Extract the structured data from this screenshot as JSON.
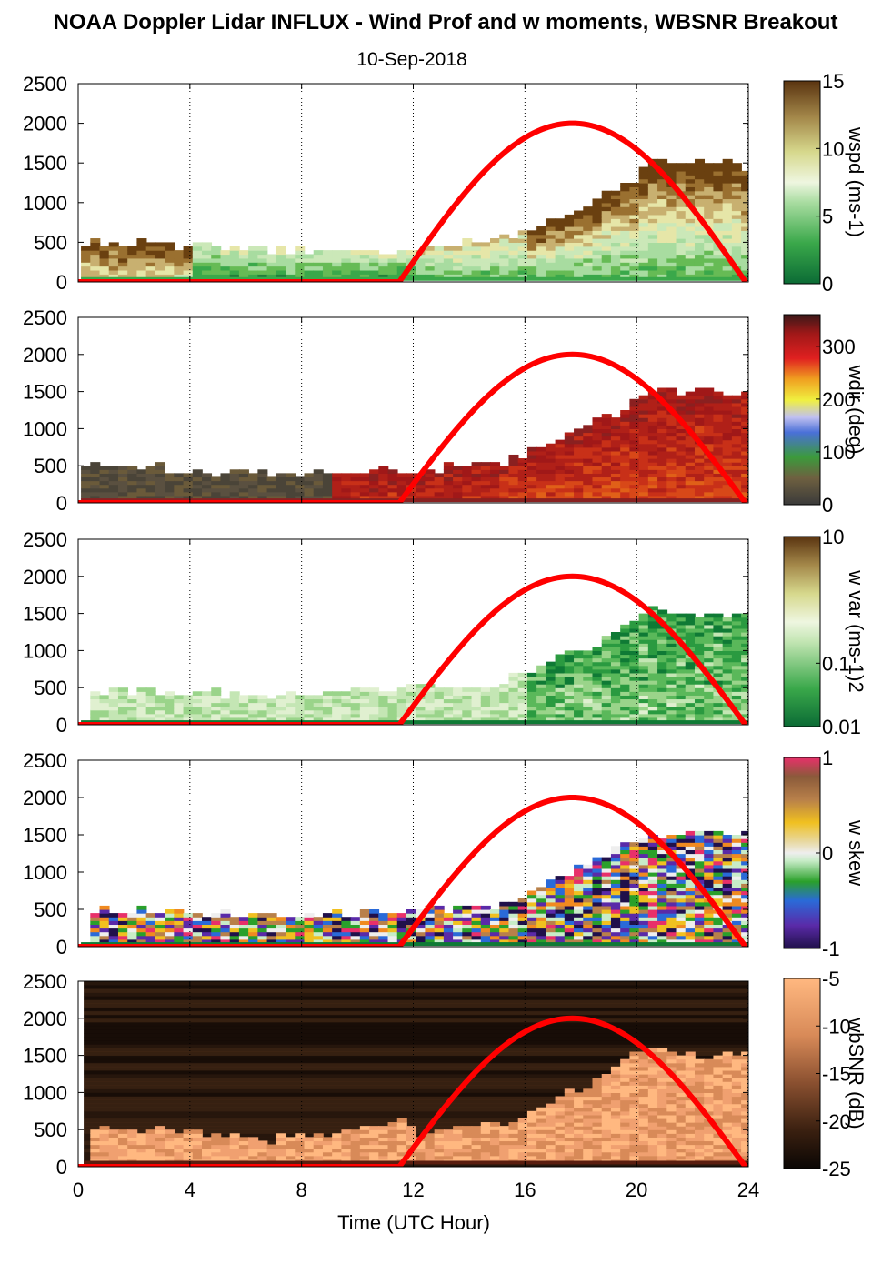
{
  "title": "NOAA Doppler Lidar INFLUX - Wind Prof and w moments, WBSNR Breakout",
  "subtitle": "10-Sep-2018",
  "xlabel": "Time (UTC Hour)",
  "chart_data": [
    {
      "type": "heatmap",
      "colorbar_label": "wspd (ms-1)",
      "colorbar_ticks": [
        "15",
        "10",
        "5",
        "0"
      ],
      "colorbar_range": [
        0,
        15
      ],
      "xlim": [
        0,
        24
      ],
      "ylim": [
        0,
        2500
      ],
      "x_ticks": [
        0,
        4,
        8,
        12,
        16,
        20,
        24
      ],
      "y_ticks": [
        0,
        500,
        1000,
        1500,
        2000,
        2500
      ],
      "top_profile": [
        [
          0,
          480
        ],
        [
          2,
          460
        ],
        [
          4,
          420
        ],
        [
          6,
          380
        ],
        [
          8,
          360
        ],
        [
          10,
          400
        ],
        [
          11.5,
          380
        ],
        [
          13,
          450
        ],
        [
          15,
          520
        ],
        [
          16,
          650
        ],
        [
          18,
          950
        ],
        [
          19.5,
          1200
        ],
        [
          20.5,
          1500
        ],
        [
          22,
          1500
        ],
        [
          23.7,
          1450
        ]
      ],
      "overlay": {
        "color": "#ff0000",
        "start_hour": 11.5,
        "peak_hour": 17.7,
        "end_hour": 23.9,
        "peak_height": 2000
      }
    },
    {
      "type": "heatmap",
      "colorbar_label": "wdir (deg)",
      "colorbar_ticks": [
        "300",
        "200",
        "100",
        "0"
      ],
      "colorbar_range": [
        0,
        360
      ],
      "xlim": [
        0,
        24
      ],
      "ylim": [
        0,
        2500
      ],
      "x_ticks": [
        0,
        4,
        8,
        12,
        16,
        20,
        24
      ],
      "y_ticks": [
        0,
        500,
        1000,
        1500,
        2000,
        2500
      ],
      "top_profile": [
        [
          0,
          500
        ],
        [
          2,
          480
        ],
        [
          4,
          420
        ],
        [
          6,
          380
        ],
        [
          8,
          360
        ],
        [
          10,
          440
        ],
        [
          11.5,
          400
        ],
        [
          13,
          450
        ],
        [
          15,
          520
        ],
        [
          16,
          650
        ],
        [
          18,
          1000
        ],
        [
          19.5,
          1250
        ],
        [
          20.5,
          1500
        ],
        [
          22,
          1480
        ],
        [
          23.7,
          1450
        ]
      ],
      "overlay": {
        "color": "#ff0000",
        "start_hour": 11.5,
        "peak_hour": 17.7,
        "end_hour": 23.9,
        "peak_height": 2000
      }
    },
    {
      "type": "heatmap",
      "colorbar_label": "w var (ms-1)2",
      "colorbar_ticks": [
        "10",
        "0.1",
        "0.01"
      ],
      "colorbar_range": [
        0.01,
        10
      ],
      "colorbar_scale": "log",
      "xlim": [
        0,
        24
      ],
      "ylim": [
        0,
        2500
      ],
      "x_ticks": [
        0,
        4,
        8,
        12,
        16,
        20,
        24
      ],
      "y_ticks": [
        0,
        500,
        1000,
        1500,
        2000,
        2500
      ],
      "top_profile": [
        [
          0.3,
          430
        ],
        [
          2,
          440
        ],
        [
          4,
          400
        ],
        [
          6,
          380
        ],
        [
          8,
          380
        ],
        [
          10,
          450
        ],
        [
          11.5,
          460
        ],
        [
          13,
          480
        ],
        [
          15,
          520
        ],
        [
          16,
          700
        ],
        [
          18,
          1000
        ],
        [
          19.5,
          1300
        ],
        [
          20.5,
          1550
        ],
        [
          22,
          1450
        ],
        [
          24,
          1450
        ]
      ],
      "overlay": {
        "color": "#ff0000",
        "start_hour": 11.5,
        "peak_hour": 17.7,
        "end_hour": 23.9,
        "peak_height": 2000
      }
    },
    {
      "type": "heatmap",
      "colorbar_label": "w skew",
      "colorbar_ticks": [
        "1",
        "0",
        "-1"
      ],
      "colorbar_range": [
        -1,
        1
      ],
      "xlim": [
        0,
        24
      ],
      "ylim": [
        0,
        2500
      ],
      "x_ticks": [
        0,
        4,
        8,
        12,
        16,
        20,
        24
      ],
      "y_ticks": [
        0,
        500,
        1000,
        1500,
        2000,
        2500
      ],
      "top_profile": [
        [
          0.3,
          430
        ],
        [
          2,
          480
        ],
        [
          4,
          420
        ],
        [
          6,
          400
        ],
        [
          8,
          400
        ],
        [
          10,
          440
        ],
        [
          11.5,
          460
        ],
        [
          13,
          480
        ],
        [
          15,
          520
        ],
        [
          16,
          700
        ],
        [
          18,
          1100
        ],
        [
          19.5,
          1350
        ],
        [
          20.5,
          1500
        ],
        [
          22,
          1500
        ],
        [
          24,
          1500
        ]
      ],
      "overlay": {
        "color": "#ff0000",
        "start_hour": 11.5,
        "peak_hour": 17.7,
        "end_hour": 23.9,
        "peak_height": 2000
      }
    },
    {
      "type": "heatmap",
      "colorbar_label": "wbSNR (dB)",
      "colorbar_ticks": [
        "-5",
        "-10",
        "-15",
        "-20",
        "-25"
      ],
      "colorbar_range": [
        -25,
        -5
      ],
      "xlim": [
        0,
        24
      ],
      "ylim": [
        0,
        2500
      ],
      "x_ticks": [
        0,
        4,
        8,
        12,
        16,
        20,
        24
      ],
      "y_ticks": [
        0,
        500,
        1000,
        1500,
        2000,
        2500
      ],
      "top_profile": [
        [
          0.2,
          520
        ],
        [
          2,
          480
        ],
        [
          4,
          450
        ],
        [
          6,
          380
        ],
        [
          7,
          340
        ],
        [
          8,
          400
        ],
        [
          10,
          450
        ],
        [
          11.5,
          600
        ],
        [
          12,
          400
        ],
        [
          14,
          500
        ],
        [
          15.5,
          550
        ],
        [
          16.5,
          800
        ],
        [
          18,
          1050
        ],
        [
          19.5,
          1450
        ],
        [
          20.5,
          1600
        ],
        [
          22,
          1450
        ],
        [
          24,
          1500
        ]
      ],
      "overlay": {
        "color": "#ff0000",
        "start_hour": 11.5,
        "peak_hour": 17.7,
        "end_hour": 23.9,
        "peak_height": 2000
      }
    }
  ]
}
